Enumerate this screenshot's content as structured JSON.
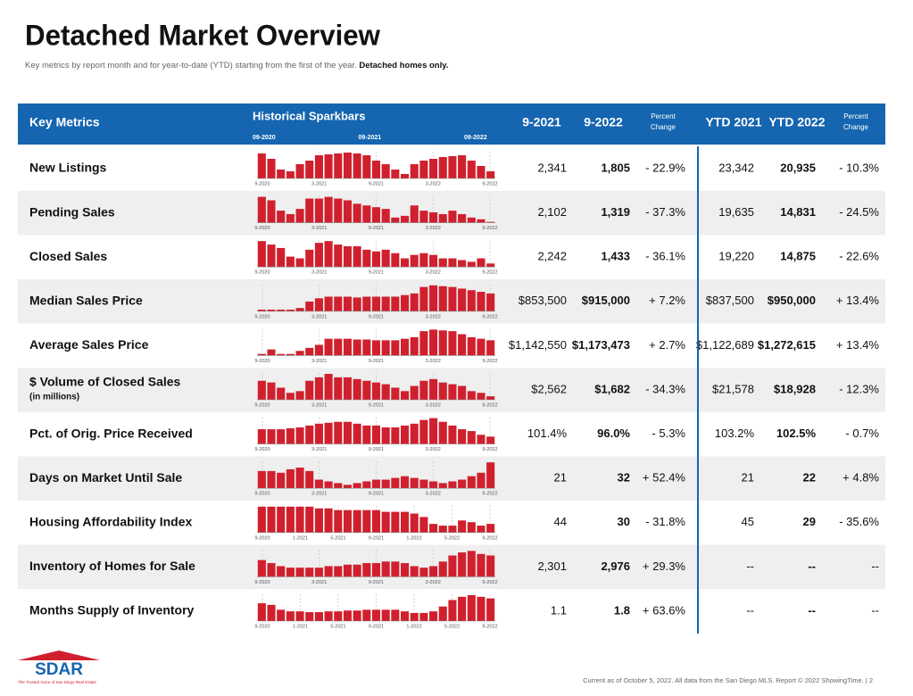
{
  "header": {
    "title": "Detached Market Overview",
    "subtitle": "Key metrics by report month and for year-to-date (YTD) starting from the first of the year.",
    "subtitle_bold": "Detached homes only."
  },
  "table": {
    "columns": {
      "metric": "Key Metrics",
      "sparkbars": "Historical Sparkbars",
      "spark_periods": [
        "09-2020",
        "09-2021",
        "09-2022"
      ],
      "values": [
        "9-2021",
        "9-2022",
        "Percent Change",
        "YTD 2021",
        "YTD 2022",
        "Percent Change"
      ]
    },
    "rows": [
      {
        "name": "New Listings",
        "spark_labels": [
          "9-2020",
          "3-2021",
          "9-2021",
          "3-2022",
          "9-2022"
        ],
        "sparkbars": [
          28,
          22,
          10,
          8,
          16,
          20,
          26,
          27,
          28,
          29,
          28,
          26,
          20,
          16,
          10,
          5,
          16,
          20,
          22,
          24,
          25,
          26,
          20,
          14,
          8
        ],
        "values": [
          "2,341",
          "1,805",
          "- 22.9%",
          "23,342",
          "20,935",
          "- 10.3%"
        ]
      },
      {
        "name": "Pending Sales",
        "spark_labels": [
          "9-2020",
          "3-2021",
          "9-2021",
          "3-2022",
          "9-2022"
        ],
        "sparkbars": [
          30,
          26,
          14,
          10,
          16,
          28,
          28,
          30,
          28,
          26,
          22,
          20,
          18,
          16,
          6,
          8,
          20,
          14,
          12,
          10,
          14,
          10,
          6,
          4,
          1
        ],
        "values": [
          "2,102",
          "1,319",
          "- 37.3%",
          "19,635",
          "14,831",
          "- 24.5%"
        ]
      },
      {
        "name": "Closed Sales",
        "spark_labels": [
          "9-2020",
          "3-2021",
          "9-2021",
          "3-2022",
          "9-2022"
        ],
        "sparkbars": [
          30,
          26,
          22,
          12,
          10,
          20,
          28,
          30,
          26,
          24,
          24,
          20,
          18,
          20,
          16,
          10,
          14,
          16,
          14,
          10,
          10,
          8,
          6,
          10,
          4
        ],
        "values": [
          "2,242",
          "1,433",
          "- 36.1%",
          "19,220",
          "14,875",
          "- 22.6%"
        ]
      },
      {
        "name": "Median Sales Price",
        "spark_labels": [
          "9-2020",
          "3-2021",
          "9-2021",
          "3-2022",
          "9-2022"
        ],
        "sparkbars": [
          2,
          2,
          2,
          2,
          4,
          12,
          16,
          18,
          18,
          18,
          17,
          18,
          18,
          18,
          18,
          20,
          22,
          30,
          32,
          31,
          30,
          28,
          26,
          24,
          22
        ],
        "values": [
          "$853,500",
          "$915,000",
          "+ 7.2%",
          "$837,500",
          "$950,000",
          "+ 13.4%"
        ]
      },
      {
        "name": "Average Sales Price",
        "spark_labels": [
          "9-2020",
          "3-2021",
          "9-2021",
          "3-2022",
          "9-2022"
        ],
        "sparkbars": [
          2,
          8,
          2,
          2,
          6,
          10,
          14,
          22,
          22,
          22,
          21,
          21,
          20,
          20,
          20,
          22,
          24,
          32,
          34,
          33,
          32,
          28,
          24,
          22,
          20
        ],
        "values": [
          "$1,142,550",
          "$1,173,473",
          "+ 2.7%",
          "$1,122,689",
          "$1,272,615",
          "+ 13.4%"
        ]
      },
      {
        "name": "$ Volume of Closed Sales",
        "note": "(in millions)",
        "spark_labels": [
          "9-2020",
          "3-2021",
          "9-2021",
          "3-2022",
          "9-2022"
        ],
        "sparkbars": [
          22,
          20,
          14,
          8,
          10,
          22,
          26,
          30,
          26,
          26,
          24,
          22,
          20,
          18,
          14,
          10,
          16,
          22,
          24,
          20,
          18,
          16,
          10,
          8,
          4
        ],
        "values": [
          "$2,562",
          "$1,682",
          "- 34.3%",
          "$21,578",
          "$18,928",
          "- 12.3%"
        ]
      },
      {
        "name": "Pct. of Orig. Price Received",
        "spark_labels": [
          "9-2020",
          "3-2021",
          "9-2021",
          "3-2022",
          "9-2022"
        ],
        "sparkbars": [
          16,
          16,
          16,
          17,
          18,
          20,
          22,
          23,
          24,
          24,
          22,
          20,
          20,
          18,
          18,
          20,
          22,
          26,
          28,
          24,
          20,
          16,
          14,
          10,
          8
        ],
        "values": [
          "101.4%",
          "96.0%",
          "- 5.3%",
          "103.2%",
          "102.5%",
          "- 0.7%"
        ]
      },
      {
        "name": "Days on Market Until Sale",
        "spark_labels": [
          "9-2020",
          "3-2021",
          "9-2021",
          "3-2022",
          "9-2022"
        ],
        "sparkbars": [
          20,
          20,
          18,
          22,
          24,
          20,
          10,
          8,
          6,
          4,
          6,
          8,
          10,
          10,
          12,
          14,
          12,
          10,
          8,
          6,
          8,
          10,
          14,
          18,
          30
        ],
        "values": [
          "21",
          "32",
          "+ 52.4%",
          "21",
          "22",
          "+ 4.8%"
        ]
      },
      {
        "name": "Housing Affordability Index",
        "spark_labels": [
          "9-2020",
          "1-2021",
          "5-2021",
          "9-2021",
          "1-2022",
          "5-2022",
          "9-2022"
        ],
        "sparkbars": [
          30,
          30,
          30,
          30,
          30,
          30,
          28,
          28,
          26,
          26,
          26,
          26,
          26,
          24,
          24,
          24,
          22,
          18,
          10,
          8,
          8,
          14,
          12,
          8,
          10
        ],
        "values": [
          "44",
          "30",
          "- 31.8%",
          "45",
          "29",
          "- 35.6%"
        ]
      },
      {
        "name": "Inventory of Homes for Sale",
        "spark_labels": [
          "9-2020",
          "3-2021",
          "9-2021",
          "3-2022",
          "9-2022"
        ],
        "sparkbars": [
          22,
          18,
          14,
          12,
          12,
          12,
          12,
          14,
          14,
          16,
          16,
          18,
          18,
          20,
          20,
          18,
          14,
          12,
          14,
          20,
          28,
          32,
          34,
          30,
          28
        ],
        "values": [
          "2,301",
          "2,976",
          "+ 29.3%",
          "--",
          "--",
          "--"
        ]
      },
      {
        "name": "Months Supply of Inventory",
        "spark_labels": [
          "9-2020",
          "1-2021",
          "5-2021",
          "9-2021",
          "1-2022",
          "5-2022",
          "9-2022"
        ],
        "sparkbars": [
          22,
          20,
          14,
          12,
          12,
          11,
          11,
          12,
          12,
          13,
          13,
          14,
          14,
          14,
          14,
          12,
          10,
          10,
          12,
          18,
          26,
          30,
          32,
          30,
          28
        ],
        "values": [
          "1.1",
          "1.8",
          "+ 63.6%",
          "--",
          "--",
          "--"
        ]
      }
    ]
  },
  "footer": {
    "logo": "SDAR",
    "tagline": "The Trusted Voice of San Diego Real Estate",
    "note": "Current as of October 5, 2022. All data from the San Diego MLS. Report © 2022 ShowingTime.  |  2"
  }
}
